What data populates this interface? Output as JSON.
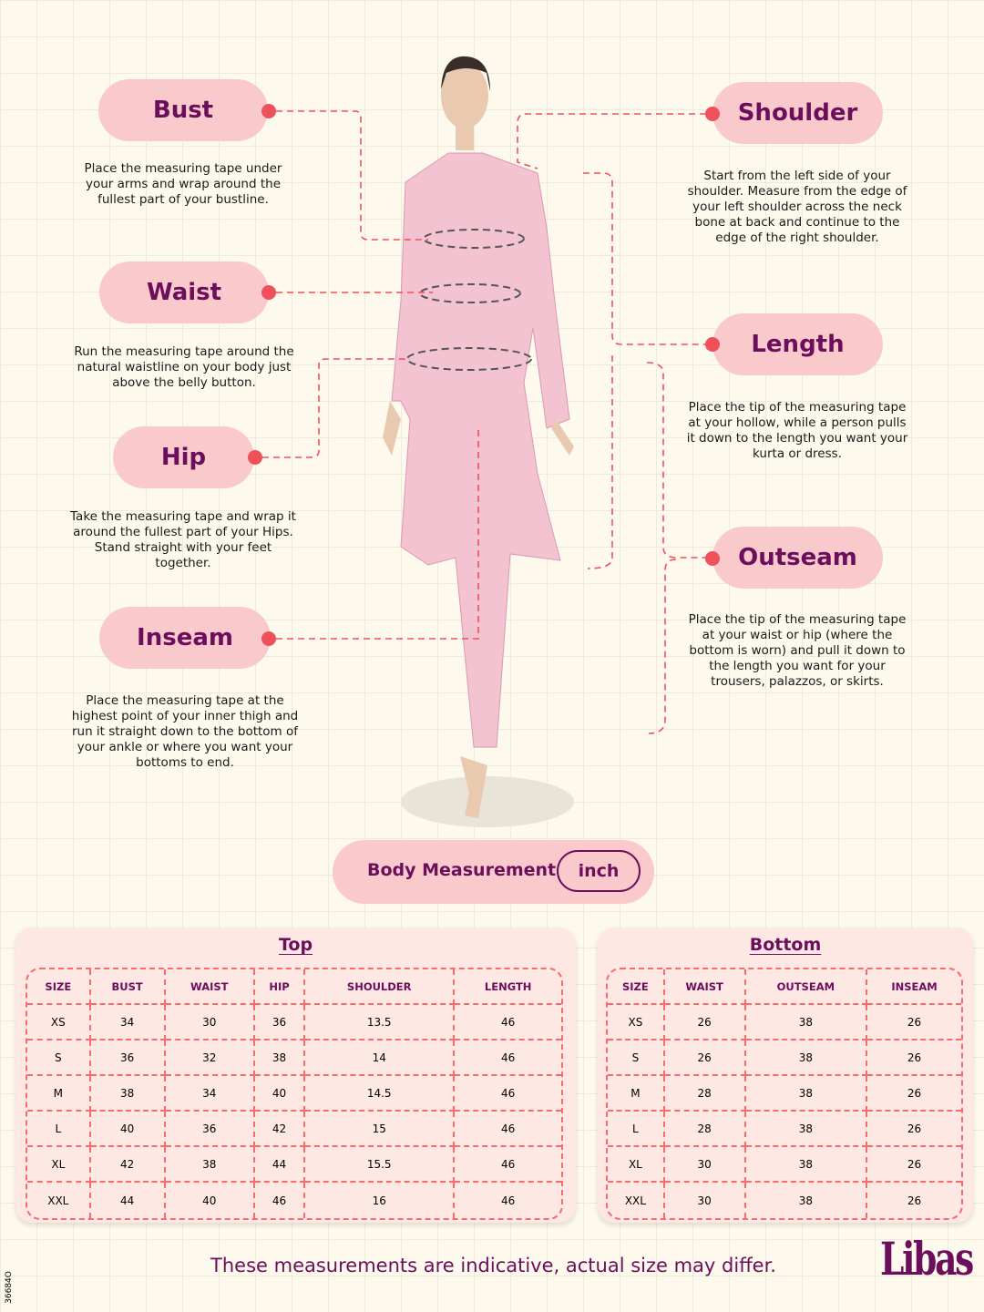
{
  "left": [
    {
      "label": "Bust",
      "desc": "Place the measuring tape under your arms and wrap around the fullest part of your bustline."
    },
    {
      "label": "Waist",
      "desc": "Run the measuring tape around the natural waistline on your body just above the belly button."
    },
    {
      "label": "Hip",
      "desc": "Take the measuring tape and wrap it around the fullest part of your Hips. Stand straight with your feet together."
    },
    {
      "label": "Inseam",
      "desc": "Place the measuring tape at the highest point of your inner thigh and run it straight down to the bottom of your ankle or where you want your bottoms to end."
    }
  ],
  "right": [
    {
      "label": "Shoulder",
      "desc": "Start from the left side of your shoulder. Measure from the edge of your left shoulder across the neck bone at back and continue to the edge of the right shoulder."
    },
    {
      "label": "Length",
      "desc": "Place the tip of the measuring tape at your hollow, while a person pulls it down to the length you want your kurta or dress."
    },
    {
      "label": "Outseam",
      "desc": "Place the tip of the measuring tape at your waist or hip (where the bottom is worn) and pull it down to the length you want for your trousers, palazzos, or skirts."
    }
  ],
  "unit_bar": {
    "label": "Body Measurement",
    "unit": "inch"
  },
  "top_table": {
    "title": "Top",
    "headers": [
      "SIZE",
      "BUST",
      "WAIST",
      "HIP",
      "SHOULDER",
      "LENGTH"
    ],
    "rows": [
      [
        "XS",
        "34",
        "30",
        "36",
        "13.5",
        "46"
      ],
      [
        "S",
        "36",
        "32",
        "38",
        "14",
        "46"
      ],
      [
        "M",
        "38",
        "34",
        "40",
        "14.5",
        "46"
      ],
      [
        "L",
        "40",
        "36",
        "42",
        "15",
        "46"
      ],
      [
        "XL",
        "42",
        "38",
        "44",
        "15.5",
        "46"
      ],
      [
        "XXL",
        "44",
        "40",
        "46",
        "16",
        "46"
      ]
    ]
  },
  "bottom_table": {
    "title": "Bottom",
    "headers": [
      "SIZE",
      "WAIST",
      "OUTSEAM",
      "INSEAM"
    ],
    "rows": [
      [
        "XS",
        "26",
        "38",
        "26"
      ],
      [
        "S",
        "26",
        "38",
        "26"
      ],
      [
        "M",
        "28",
        "38",
        "26"
      ],
      [
        "L",
        "28",
        "38",
        "26"
      ],
      [
        "XL",
        "30",
        "38",
        "26"
      ],
      [
        "XXL",
        "30",
        "38",
        "26"
      ]
    ]
  },
  "footer": {
    "note": "These measurements are indicative, actual size may differ.",
    "brand": "Libas",
    "code": "36684O"
  },
  "colors": {
    "pill": "#f9c9cc",
    "label": "#6b0f5c",
    "accent": "#f0505a",
    "background": "#fdf9ec"
  }
}
